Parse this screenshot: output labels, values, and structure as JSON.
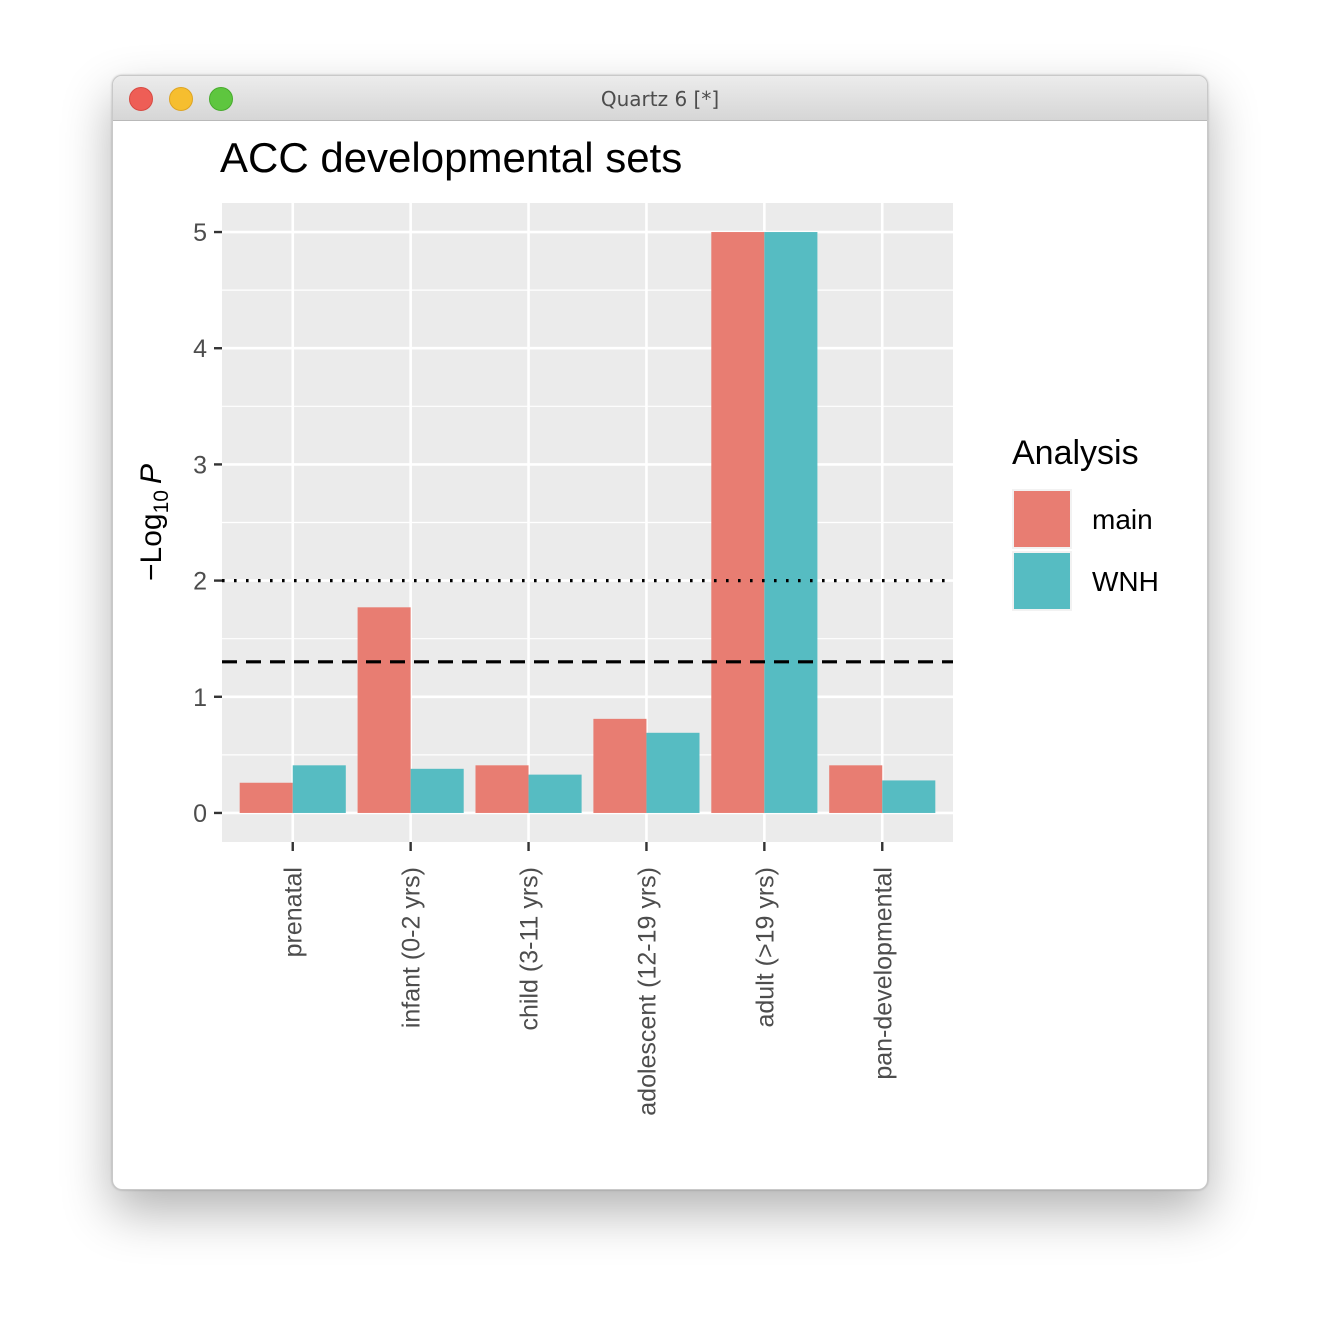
{
  "window": {
    "title": "Quartz 6 [*]"
  },
  "chart_data": {
    "type": "bar",
    "title": "ACC developmental sets",
    "xlabel": "",
    "ylabel": "−Log10 P",
    "ylabel_parts": {
      "prefix": "−Log",
      "subscript": "10",
      "italic": "P"
    },
    "categories": [
      "prenatal",
      "infant (0-2 yrs)",
      "child (3-11 yrs)",
      "adolescent (12-19 yrs)",
      "adult (>19 yrs)",
      "pan-developmental"
    ],
    "series": [
      {
        "name": "main",
        "color": "#E87D72",
        "values": [
          0.26,
          1.77,
          0.41,
          0.81,
          5.0,
          0.41
        ]
      },
      {
        "name": "WNH",
        "color": "#56BCC2",
        "values": [
          0.41,
          0.38,
          0.33,
          0.69,
          5.0,
          0.28
        ]
      }
    ],
    "ylim": [
      -0.25,
      5.25
    ],
    "yticks": [
      0,
      1,
      2,
      3,
      4,
      5
    ],
    "reference_lines": [
      {
        "y": 2.0,
        "style": "dotted"
      },
      {
        "y": 1.301,
        "style": "dashed"
      }
    ],
    "grid": true,
    "legend": {
      "title": "Analysis",
      "position": "right"
    },
    "x_tick_rotation": 90
  }
}
